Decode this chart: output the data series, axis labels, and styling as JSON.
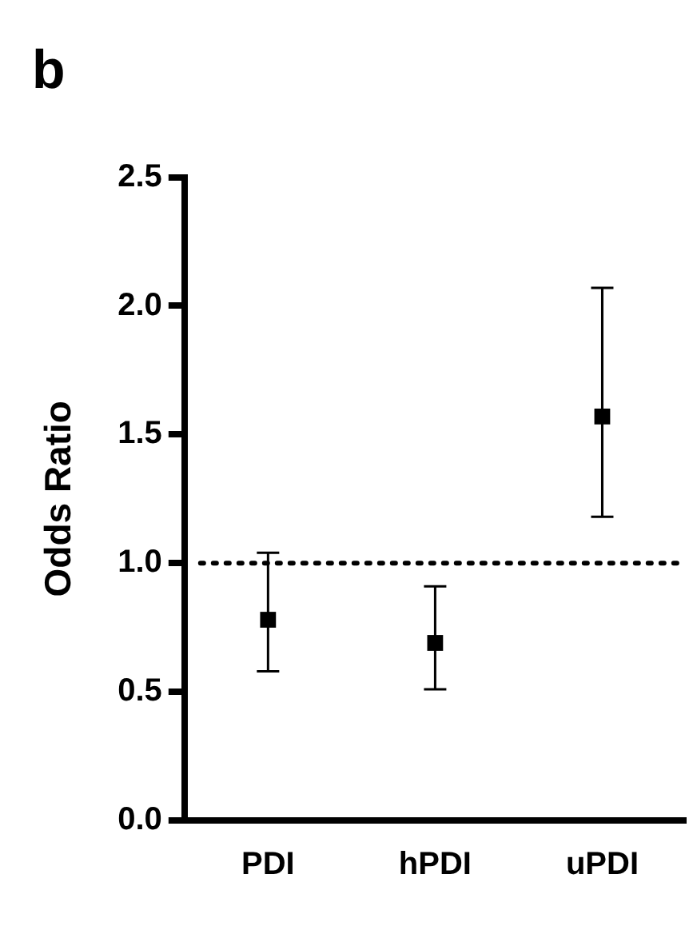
{
  "chart_data": {
    "type": "scatter",
    "title": "b",
    "ylabel": "Odds Ratio",
    "categories": [
      "PDI",
      "hPDI",
      "uPDI"
    ],
    "series": [
      {
        "color": "#000000",
        "values": [
          0.78,
          0.69,
          1.57
        ],
        "errors": [
          [
            0.58,
            1.04
          ],
          [
            0.51,
            0.91
          ],
          [
            1.18,
            2.07
          ]
        ]
      }
    ],
    "marker": "square",
    "ylim": [
      0,
      2.5
    ],
    "yticks": [
      {
        "value": 0,
        "label": "0.0"
      },
      {
        "value": 0.5,
        "label": "0.5"
      },
      {
        "value": 1,
        "label": "1.0"
      },
      {
        "value": 1.5,
        "label": "1.5"
      },
      {
        "value": 2,
        "label": "2.0"
      },
      {
        "value": 2.5,
        "label": "2.5"
      }
    ],
    "ref_lines": [
      {
        "axis": "y",
        "value": 1,
        "line_style": "dotted",
        "color": "#000000"
      }
    ],
    "grid": false,
    "legend": false
  }
}
